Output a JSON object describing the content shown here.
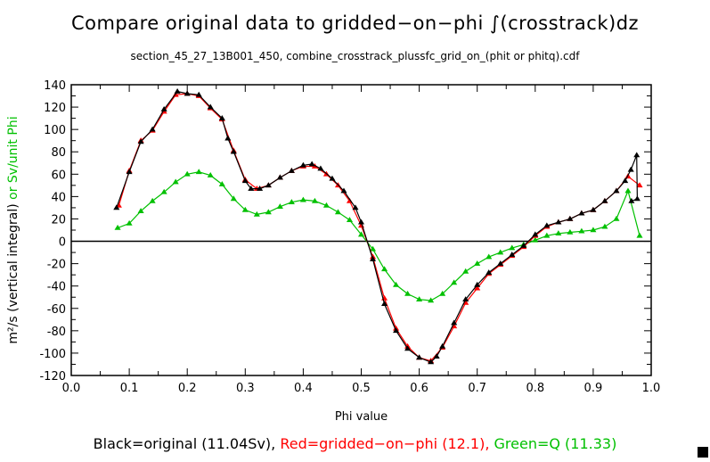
{
  "chart_data": {
    "type": "line",
    "title": "Compare original data to gridded−on−phi ∫(crosstrack)dz",
    "subtitle": "section_45_27_13B001_450, combine_crosstrack_plussfc_grid_on_(phit or phitq).cdf",
    "xlabel": "Phi value",
    "ylabel_main": "m²/s (vertical integral)",
    "ylabel_alt": " or Sv/unit Phi",
    "xlim": [
      0.0,
      1.0
    ],
    "ylim": [
      -120,
      140
    ],
    "xticks": [
      "0.0",
      "0.1",
      "0.2",
      "0.3",
      "0.4",
      "0.5",
      "0.6",
      "0.7",
      "0.8",
      "0.9",
      "1.0"
    ],
    "yticks": [
      "140",
      "120",
      "100",
      "80",
      "60",
      "40",
      "20",
      "0",
      "-20",
      "-40",
      "-60",
      "-80",
      "-100",
      "-120"
    ],
    "zero_line": true,
    "legend": {
      "black": "Black=original (11.04Sv),",
      "red": "Red=gridded−on−phi (12.1),",
      "green": "Green=Q (11.33)"
    },
    "series": [
      {
        "name": "original",
        "color": "#000000",
        "x": [
          0.078,
          0.1,
          0.12,
          0.14,
          0.16,
          0.183,
          0.2,
          0.22,
          0.24,
          0.26,
          0.27,
          0.28,
          0.3,
          0.31,
          0.325,
          0.34,
          0.36,
          0.38,
          0.4,
          0.415,
          0.43,
          0.45,
          0.47,
          0.49,
          0.5,
          0.52,
          0.54,
          0.56,
          0.58,
          0.6,
          0.62,
          0.63,
          0.64,
          0.66,
          0.68,
          0.7,
          0.72,
          0.74,
          0.76,
          0.78,
          0.8,
          0.82,
          0.84,
          0.86,
          0.88,
          0.9,
          0.92,
          0.94,
          0.955,
          0.965,
          0.975,
          0.976,
          0.966
        ],
        "y": [
          30,
          62,
          89,
          100,
          118,
          134,
          132,
          131,
          120,
          110,
          92,
          80,
          54,
          47,
          47,
          50,
          57,
          63,
          68,
          69,
          65,
          56,
          45,
          30,
          17,
          -16,
          -56,
          -80,
          -96,
          -104,
          -108,
          -103,
          -94,
          -73,
          -52,
          -39,
          -28,
          -20,
          -12,
          -4,
          6,
          14,
          17,
          20,
          25,
          28,
          36,
          45,
          54,
          64,
          77,
          38,
          36
        ]
      },
      {
        "name": "gridded-on-phi",
        "color": "#ff0000",
        "x": [
          0.082,
          0.1,
          0.12,
          0.14,
          0.16,
          0.18,
          0.2,
          0.22,
          0.24,
          0.26,
          0.28,
          0.3,
          0.32,
          0.34,
          0.36,
          0.38,
          0.4,
          0.42,
          0.44,
          0.46,
          0.48,
          0.5,
          0.52,
          0.54,
          0.56,
          0.58,
          0.6,
          0.62,
          0.64,
          0.66,
          0.68,
          0.7,
          0.72,
          0.74,
          0.76,
          0.78,
          0.8,
          0.82,
          0.84,
          0.86,
          0.88,
          0.9,
          0.92,
          0.94,
          0.96,
          0.98
        ],
        "y": [
          32,
          63,
          90,
          99,
          116,
          131,
          132,
          130,
          119,
          109,
          81,
          55,
          47,
          50,
          57,
          63,
          67,
          67,
          60,
          50,
          36,
          14,
          -14,
          -51,
          -78,
          -94,
          -104,
          -107,
          -95,
          -76,
          -55,
          -42,
          -29,
          -21,
          -13,
          -5,
          5,
          13,
          17,
          20,
          25,
          28,
          36,
          45,
          58,
          50
        ]
      },
      {
        "name": "Q",
        "color": "#00c000",
        "x": [
          0.08,
          0.1,
          0.12,
          0.14,
          0.16,
          0.18,
          0.2,
          0.22,
          0.24,
          0.26,
          0.28,
          0.3,
          0.32,
          0.34,
          0.36,
          0.38,
          0.4,
          0.42,
          0.44,
          0.46,
          0.48,
          0.5,
          0.52,
          0.54,
          0.56,
          0.58,
          0.6,
          0.62,
          0.64,
          0.66,
          0.68,
          0.7,
          0.72,
          0.74,
          0.76,
          0.78,
          0.8,
          0.82,
          0.84,
          0.86,
          0.88,
          0.9,
          0.92,
          0.94,
          0.96,
          0.98
        ],
        "y": [
          12,
          16,
          27,
          36,
          44,
          53,
          60,
          62,
          59,
          51,
          38,
          28,
          24,
          26,
          31,
          35,
          37,
          36,
          32,
          26,
          19,
          6,
          -7,
          -25,
          -39,
          -47,
          -52,
          -53,
          -47,
          -37,
          -27,
          -20,
          -14,
          -10,
          -6,
          -3,
          1,
          5,
          7,
          8,
          9,
          10,
          13,
          20,
          45,
          5
        ]
      }
    ]
  }
}
